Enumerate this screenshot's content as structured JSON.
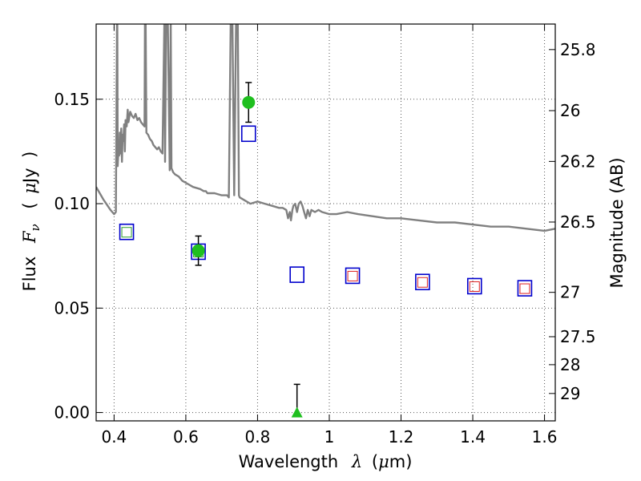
{
  "chart_data": {
    "type": "scatter",
    "xlabel_text": "Wavelength",
    "xlabel_symbol": "λ",
    "xlabel_unit_open": "(",
    "xlabel_unit_mu": "μ",
    "xlabel_unit_rest": "m)",
    "ylabel_text": "Flux",
    "ylabel_symbol": "F",
    "ylabel_subscript": "ν",
    "ylabel_unit_open": "(",
    "ylabel_unit_mu": "μ",
    "ylabel_unit_rest": "Jy",
    "ylabel_unit_close": ")",
    "y2label": "Magnitude (AB)",
    "xlim": [
      0.35,
      1.63
    ],
    "ylim": [
      -0.004,
      0.186
    ],
    "grid": true,
    "x_ticks": [
      {
        "value": 0.4,
        "label": "0.4"
      },
      {
        "value": 0.6,
        "label": "0.6"
      },
      {
        "value": 0.8,
        "label": "0.8"
      },
      {
        "value": 1.0,
        "label": "1"
      },
      {
        "value": 1.2,
        "label": "1.2"
      },
      {
        "value": 1.4,
        "label": "1.4"
      },
      {
        "value": 1.6,
        "label": "1.6"
      }
    ],
    "y_ticks": [
      {
        "value": 0.0,
        "label": "0.00"
      },
      {
        "value": 0.05,
        "label": "0.05"
      },
      {
        "value": 0.1,
        "label": "0.10"
      },
      {
        "value": 0.15,
        "label": "0.15"
      }
    ],
    "mag_ticks": [
      {
        "value": 25.8,
        "label": "25.8"
      },
      {
        "value": 26.0,
        "label": "26"
      },
      {
        "value": 26.2,
        "label": "26.2"
      },
      {
        "value": 26.5,
        "label": "26.5"
      },
      {
        "value": 27.0,
        "label": "27"
      },
      {
        "value": 27.5,
        "label": "27.5"
      },
      {
        "value": 28.0,
        "label": "28"
      },
      {
        "value": 29.0,
        "label": "29"
      }
    ],
    "colors": {
      "template": "#808080",
      "observed": "#1fbf1f",
      "model": "#0000cc",
      "inner_green": "#2ca02c",
      "inner_red": "#dd2222",
      "grid": "#555555",
      "errorbar": "#000000"
    },
    "series": [
      {
        "kind": "template_spectrum",
        "x": [
          0.35,
          0.37,
          0.39,
          0.4,
          0.405,
          0.408,
          0.409,
          0.41,
          0.412,
          0.414,
          0.416,
          0.418,
          0.42,
          0.422,
          0.424,
          0.426,
          0.428,
          0.43,
          0.432,
          0.435,
          0.438,
          0.44,
          0.445,
          0.45,
          0.455,
          0.46,
          0.465,
          0.47,
          0.475,
          0.48,
          0.485,
          0.486,
          0.488,
          0.49,
          0.495,
          0.5,
          0.505,
          0.51,
          0.515,
          0.52,
          0.525,
          0.53,
          0.535,
          0.54,
          0.542,
          0.545,
          0.547,
          0.55,
          0.555,
          0.558,
          0.56,
          0.565,
          0.57,
          0.58,
          0.59,
          0.6,
          0.62,
          0.64,
          0.65,
          0.656,
          0.66,
          0.68,
          0.7,
          0.715,
          0.72,
          0.725,
          0.727,
          0.73,
          0.735,
          0.74,
          0.745,
          0.748,
          0.75,
          0.76,
          0.78,
          0.8,
          0.82,
          0.84,
          0.86,
          0.87,
          0.88,
          0.885,
          0.89,
          0.893,
          0.897,
          0.9,
          0.905,
          0.91,
          0.915,
          0.92,
          0.925,
          0.93,
          0.935,
          0.94,
          0.945,
          0.95,
          0.96,
          0.97,
          0.98,
          1.0,
          1.02,
          1.05,
          1.08,
          1.12,
          1.16,
          1.2,
          1.25,
          1.3,
          1.35,
          1.4,
          1.45,
          1.5,
          1.55,
          1.6,
          1.63
        ],
        "y": [
          0.108,
          0.102,
          0.097,
          0.095,
          0.096,
          0.186,
          0.186,
          0.118,
          0.126,
          0.123,
          0.134,
          0.124,
          0.136,
          0.12,
          0.133,
          0.13,
          0.138,
          0.125,
          0.14,
          0.137,
          0.145,
          0.139,
          0.144,
          0.142,
          0.141,
          0.143,
          0.14,
          0.141,
          0.139,
          0.138,
          0.137,
          0.186,
          0.186,
          0.134,
          0.133,
          0.131,
          0.13,
          0.128,
          0.127,
          0.126,
          0.127,
          0.125,
          0.124,
          0.186,
          0.12,
          0.186,
          0.186,
          0.186,
          0.116,
          0.186,
          0.117,
          0.115,
          0.114,
          0.113,
          0.111,
          0.11,
          0.108,
          0.107,
          0.106,
          0.106,
          0.105,
          0.105,
          0.104,
          0.104,
          0.103,
          0.186,
          0.186,
          0.186,
          0.104,
          0.186,
          0.186,
          0.104,
          0.103,
          0.102,
          0.1,
          0.101,
          0.1,
          0.099,
          0.098,
          0.098,
          0.097,
          0.093,
          0.096,
          0.092,
          0.097,
          0.099,
          0.1,
          0.096,
          0.1,
          0.101,
          0.099,
          0.096,
          0.093,
          0.097,
          0.094,
          0.097,
          0.096,
          0.097,
          0.096,
          0.095,
          0.095,
          0.096,
          0.095,
          0.094,
          0.093,
          0.093,
          0.092,
          0.091,
          0.091,
          0.09,
          0.089,
          0.089,
          0.088,
          0.087,
          0.088
        ]
      },
      {
        "kind": "observed",
        "name": "",
        "points": [
          {
            "x": 0.635,
            "y": 0.0775,
            "yerr": 0.007
          },
          {
            "x": 0.775,
            "y": 0.1485,
            "yerr": 0.0095
          }
        ]
      },
      {
        "kind": "upper_limit",
        "name": "",
        "points": [
          {
            "x": 0.91,
            "y": 0.0,
            "yerr": 0.0135
          }
        ]
      },
      {
        "kind": "model_photometry",
        "name": "",
        "points": [
          {
            "x": 0.435,
            "y": 0.0865,
            "inner": "green"
          },
          {
            "x": 0.635,
            "y": 0.077,
            "inner": "green"
          },
          {
            "x": 0.775,
            "y": 0.1335,
            "inner": "none"
          },
          {
            "x": 0.91,
            "y": 0.066,
            "inner": "none"
          },
          {
            "x": 1.065,
            "y": 0.0655,
            "inner": "red"
          },
          {
            "x": 1.26,
            "y": 0.0625,
            "inner": "red"
          },
          {
            "x": 1.405,
            "y": 0.0605,
            "inner": "red"
          },
          {
            "x": 1.545,
            "y": 0.0595,
            "inner": "red"
          }
        ]
      }
    ]
  }
}
